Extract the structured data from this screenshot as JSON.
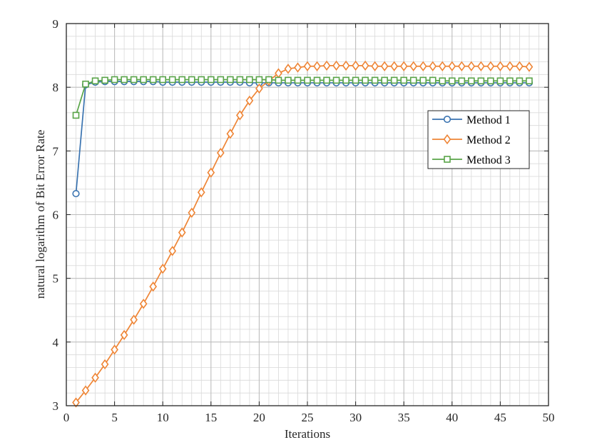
{
  "chart_data": {
    "type": "line",
    "title": "",
    "xlabel": "Iterations",
    "ylabel": "natural logarithm of Bit Error Rate",
    "xlim": [
      0,
      50
    ],
    "ylim": [
      3,
      9
    ],
    "xticks": [
      0,
      5,
      10,
      15,
      20,
      25,
      30,
      35,
      40,
      45,
      50
    ],
    "yticks": [
      3,
      4,
      5,
      6,
      7,
      8,
      9
    ],
    "xtick_labels": [
      "0",
      "5",
      "10",
      "15",
      "20",
      "25",
      "30",
      "35",
      "40",
      "45",
      "50"
    ],
    "ytick_labels": [
      "3",
      "4",
      "5",
      "6",
      "7",
      "8",
      "9"
    ],
    "grid": true,
    "minor_grid": true,
    "legend_position": "right",
    "x": [
      1,
      2,
      3,
      4,
      5,
      6,
      7,
      8,
      9,
      10,
      11,
      12,
      13,
      14,
      15,
      16,
      17,
      18,
      19,
      20,
      21,
      22,
      23,
      24,
      25,
      26,
      27,
      28,
      29,
      30,
      31,
      32,
      33,
      34,
      35,
      36,
      37,
      38,
      39,
      40,
      41,
      42,
      43,
      44,
      45,
      46,
      47,
      48
    ],
    "series": [
      {
        "name": "Method 1",
        "color": "#3A73B0",
        "marker": "circle",
        "values": [
          6.33,
          8.04,
          8.08,
          8.09,
          8.09,
          8.09,
          8.09,
          8.09,
          8.09,
          8.08,
          8.08,
          8.08,
          8.08,
          8.08,
          8.08,
          8.08,
          8.08,
          8.08,
          8.07,
          8.07,
          8.07,
          8.07,
          8.07,
          8.07,
          8.07,
          8.07,
          8.07,
          8.07,
          8.07,
          8.07,
          8.07,
          8.07,
          8.07,
          8.07,
          8.07,
          8.07,
          8.07,
          8.07,
          8.07,
          8.07,
          8.07,
          8.07,
          8.07,
          8.07,
          8.07,
          8.07,
          8.07,
          8.07
        ]
      },
      {
        "name": "Method 2",
        "color": "#EE8536",
        "marker": "diamond",
        "values": [
          3.05,
          3.24,
          3.44,
          3.65,
          3.88,
          4.11,
          4.35,
          4.6,
          4.87,
          5.15,
          5.43,
          5.72,
          6.03,
          6.35,
          6.66,
          6.97,
          7.27,
          7.56,
          7.79,
          7.98,
          8.1,
          8.22,
          8.29,
          8.31,
          8.33,
          8.33,
          8.34,
          8.34,
          8.34,
          8.34,
          8.34,
          8.33,
          8.33,
          8.33,
          8.33,
          8.33,
          8.33,
          8.33,
          8.33,
          8.33,
          8.33,
          8.33,
          8.33,
          8.33,
          8.33,
          8.33,
          8.33,
          8.32
        ]
      },
      {
        "name": "Method 3",
        "color": "#59A448",
        "marker": "square",
        "values": [
          7.56,
          8.05,
          8.1,
          8.11,
          8.12,
          8.12,
          8.12,
          8.12,
          8.12,
          8.12,
          8.12,
          8.12,
          8.12,
          8.12,
          8.12,
          8.12,
          8.12,
          8.12,
          8.12,
          8.12,
          8.12,
          8.11,
          8.11,
          8.11,
          8.11,
          8.11,
          8.11,
          8.11,
          8.11,
          8.11,
          8.11,
          8.11,
          8.11,
          8.11,
          8.11,
          8.11,
          8.11,
          8.11,
          8.1,
          8.1,
          8.1,
          8.1,
          8.1,
          8.1,
          8.1,
          8.1,
          8.1,
          8.1
        ]
      }
    ]
  }
}
